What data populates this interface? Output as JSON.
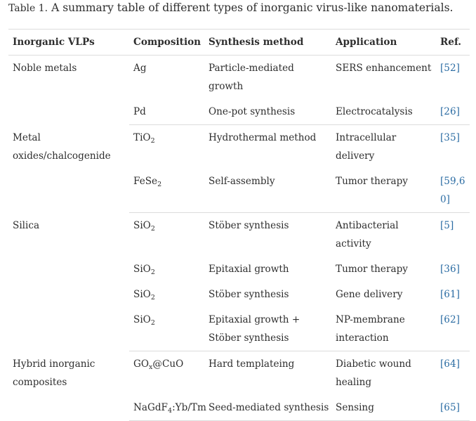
{
  "caption": {
    "label": "Table 1.",
    "text": "A summary table of different types of inorganic virus-like nanomaterials."
  },
  "table": {
    "headers": [
      "Inorganic VLPs",
      "Composition",
      "Synthesis method",
      "Application",
      "Ref."
    ],
    "groups": [
      {
        "label": "Noble metals",
        "rows": [
          {
            "composition": "Ag",
            "method": "Particle-mediated growth",
            "application": "SERS enhancement",
            "ref": "[52]"
          },
          {
            "composition": "Pd",
            "method": "One-pot synthesis",
            "application": "Electrocatalysis",
            "ref": "[26]"
          }
        ]
      },
      {
        "label": "Metal oxides/chalcogenide",
        "rows": [
          {
            "composition": "TiO",
            "composition_sub": "2",
            "method": "Hydrothermal method",
            "application": "Intracellular delivery",
            "ref": "[35]"
          },
          {
            "composition": "FeSe",
            "composition_sub": "2",
            "method": "Self-assembly",
            "application": "Tumor therapy",
            "ref": "[59,60]"
          }
        ]
      },
      {
        "label": "Silica",
        "rows": [
          {
            "composition": "SiO",
            "composition_sub": "2",
            "method": "Stöber synthesis",
            "application": "Antibacterial activity",
            "ref": "[5]"
          },
          {
            "composition": "SiO",
            "composition_sub": "2",
            "method": "Epitaxial growth",
            "application": "Tumor therapy",
            "ref": "[36]"
          },
          {
            "composition": "SiO",
            "composition_sub": "2",
            "method": "Stöber synthesis",
            "application": "Gene delivery",
            "ref": "[61]"
          },
          {
            "composition": "SiO",
            "composition_sub": "2",
            "method": "Epitaxial growth + Stöber synthesis",
            "application": "NP-membrane interaction",
            "ref": "[62]"
          }
        ]
      },
      {
        "label": "Hybrid inorganic composites",
        "rows": [
          {
            "composition": "GO",
            "composition_sub": "x",
            "composition_after": "@CuO",
            "method": "Hard templateing",
            "application": "Diabetic wound healing",
            "ref": "[64]"
          },
          {
            "composition": "NaGdF",
            "composition_sub": "4",
            "composition_after": ":Yb/Tm",
            "method": "Seed-mediated synthesis",
            "application": "Sensing",
            "ref": "[65]"
          }
        ]
      }
    ]
  },
  "colors": {
    "text": "#2e2e2e",
    "link": "#2b6ca3",
    "rule": "#dcdcdc"
  }
}
